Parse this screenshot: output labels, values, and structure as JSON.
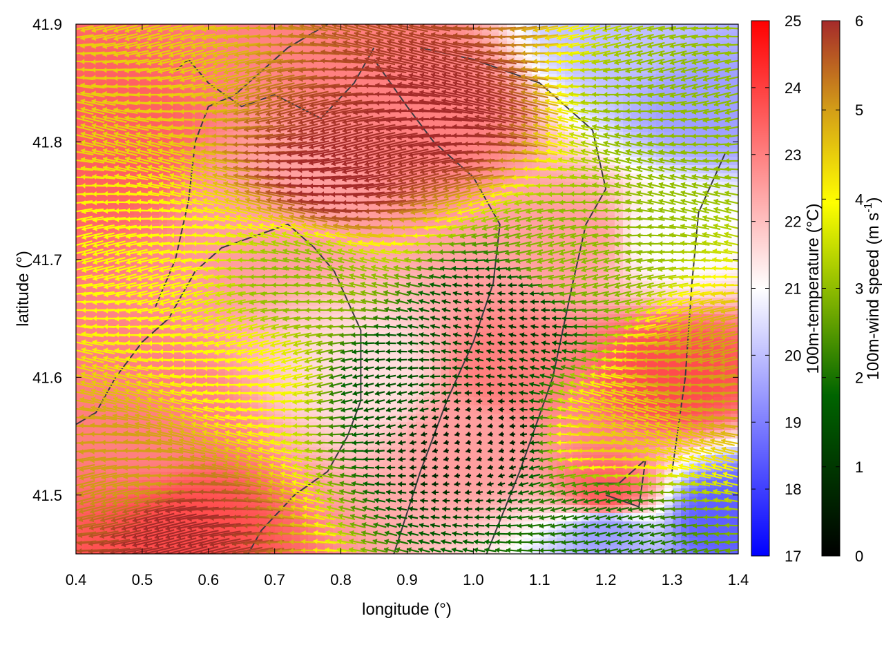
{
  "chart_data": {
    "type": "heatmap",
    "title": "",
    "xlabel": "longitude (°)",
    "ylabel": "latitude (°)",
    "xlim": [
      0.4,
      1.4
    ],
    "ylim": [
      41.45,
      41.9
    ],
    "x_ticks": [
      "0.4",
      "0.5",
      "0.6",
      "0.7",
      "0.8",
      "0.9",
      "1.0",
      "1.1",
      "1.2",
      "1.3",
      "1.4"
    ],
    "x_tick_values": [
      0.4,
      0.5,
      0.6,
      0.7,
      0.8,
      0.9,
      1.0,
      1.1,
      1.2,
      1.3,
      1.4
    ],
    "y_ticks": [
      "41.5",
      "41.6",
      "41.7",
      "41.8",
      "41.9"
    ],
    "y_tick_values": [
      41.5,
      41.6,
      41.7,
      41.8,
      41.9
    ],
    "temperature_colorbar": {
      "label": "100m-temperature (°C)",
      "range": [
        17,
        25
      ],
      "ticks": [
        "17",
        "18",
        "19",
        "20",
        "21",
        "22",
        "23",
        "24",
        "25"
      ],
      "colors": [
        "#0000ff",
        "#ffffff",
        "#ff0000"
      ]
    },
    "wind_colorbar": {
      "label_main": "100m-wind speed (m s",
      "label_sup": "-1",
      "label_end": ")",
      "range": [
        0,
        6
      ],
      "ticks": [
        "0",
        "1",
        "2",
        "3",
        "4",
        "5",
        "6"
      ],
      "colors": [
        "#000000",
        "#006400",
        "#8fbc00",
        "#ffff00",
        "#d4a017",
        "#a52a2a"
      ]
    },
    "temperature_field": {
      "note_values_degC": [
        {
          "lon": 0.45,
          "lat": 41.8,
          "t": 23.5
        },
        {
          "lon": 0.5,
          "lat": 41.55,
          "t": 23.0
        },
        {
          "lon": 0.55,
          "lat": 41.47,
          "t": 23.8
        },
        {
          "lon": 0.7,
          "lat": 41.75,
          "t": 22.5
        },
        {
          "lon": 0.85,
          "lat": 41.88,
          "t": 23.0
        },
        {
          "lon": 0.95,
          "lat": 41.82,
          "t": 23.0
        },
        {
          "lon": 0.85,
          "lat": 41.6,
          "t": 21.5
        },
        {
          "lon": 1.0,
          "lat": 41.55,
          "t": 22.5
        },
        {
          "lon": 1.05,
          "lat": 41.6,
          "t": 23.0
        },
        {
          "lon": 1.15,
          "lat": 41.72,
          "t": 22.5
        },
        {
          "lon": 1.2,
          "lat": 41.5,
          "t": 23.5
        },
        {
          "lon": 1.3,
          "lat": 41.6,
          "t": 23.8
        },
        {
          "lon": 1.22,
          "lat": 41.89,
          "t": 20.0
        },
        {
          "lon": 1.35,
          "lat": 41.83,
          "t": 19.5
        },
        {
          "lon": 1.38,
          "lat": 41.48,
          "t": 18.5
        },
        {
          "lon": 1.2,
          "lat": 41.47,
          "t": 19.5
        },
        {
          "lon": 1.3,
          "lat": 41.72,
          "t": 21.0
        }
      ]
    },
    "wind_field": {
      "direction": "mostly easterly (arrows pointing west)",
      "speed_regions_ms": [
        {
          "lon": 0.45,
          "lat": 41.85,
          "speed": 4.5
        },
        {
          "lon": 0.5,
          "lat": 41.7,
          "speed": 4.0
        },
        {
          "lon": 0.5,
          "lat": 41.52,
          "speed": 5.0
        },
        {
          "lon": 0.55,
          "lat": 41.47,
          "speed": 6.0
        },
        {
          "lon": 0.65,
          "lat": 41.6,
          "speed": 4.0
        },
        {
          "lon": 0.75,
          "lat": 41.68,
          "speed": 3.0
        },
        {
          "lon": 0.8,
          "lat": 41.77,
          "speed": 6.0
        },
        {
          "lon": 0.95,
          "lat": 41.82,
          "speed": 6.0
        },
        {
          "lon": 0.9,
          "lat": 41.6,
          "speed": 1.5
        },
        {
          "lon": 1.0,
          "lat": 41.55,
          "speed": 0.5
        },
        {
          "lon": 1.05,
          "lat": 41.65,
          "speed": 1.0
        },
        {
          "lon": 1.15,
          "lat": 41.7,
          "speed": 3.0
        },
        {
          "lon": 1.22,
          "lat": 41.55,
          "speed": 4.5
        },
        {
          "lon": 1.3,
          "lat": 41.82,
          "speed": 3.0
        },
        {
          "lon": 1.35,
          "lat": 41.6,
          "speed": 5.0
        },
        {
          "lon": 1.2,
          "lat": 41.48,
          "speed": 2.0
        }
      ]
    },
    "grid": false
  }
}
